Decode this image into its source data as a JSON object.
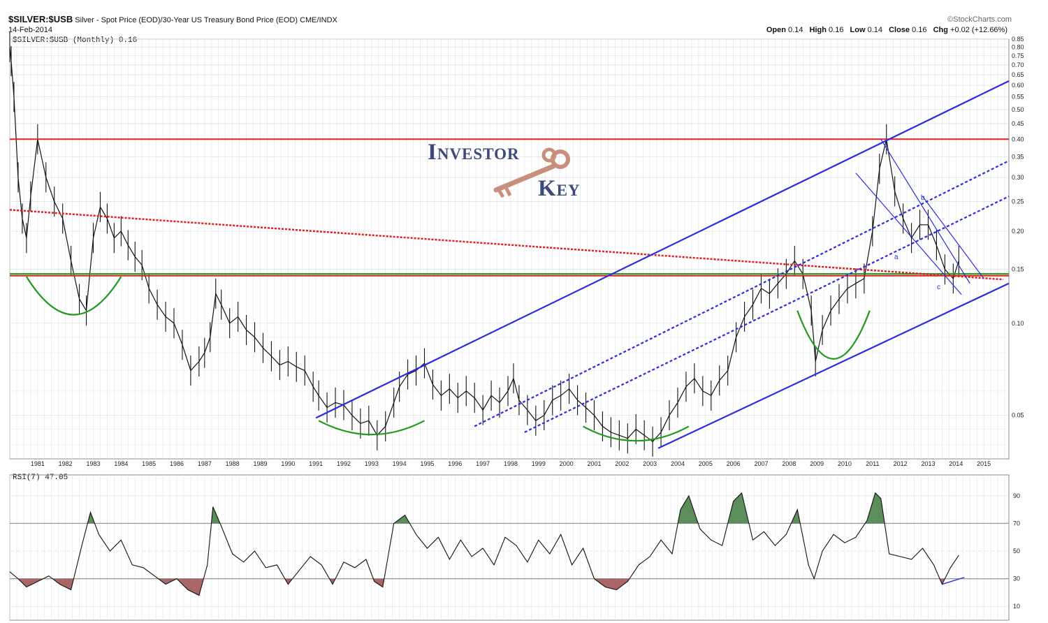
{
  "header": {
    "symbol": "$SILVER:$USB",
    "description": "Silver - Spot Price (EOD)/30-Year US Treasury Bond Price (EOD)",
    "exchange": "CME/INDX",
    "date": "14-Feb-2014",
    "watermark": "©StockCharts.com",
    "legend": "$SILVER:$USB (Monthly) 0.16",
    "ohlc": {
      "open_label": "Open",
      "open": "0.14",
      "high_label": "High",
      "high": "0.16",
      "low_label": "Low",
      "low": "0.14",
      "close_label": "Close",
      "close": "0.16",
      "chg_label": "Chg",
      "chg": "+0.02 (+12.66%)"
    }
  },
  "logo": {
    "line1": "Investor",
    "line2": "Key"
  },
  "wave_labels": [
    "a",
    "b",
    "c"
  ],
  "rsi_legend": "RSI(7) 47.05",
  "colors": {
    "price": "#111111",
    "channel": "#2b2be0",
    "horizontal": "#e02020",
    "support": "#1a9a1a",
    "arc": "#1f9a1f",
    "oversold": "#9b4a4a",
    "overbought": "#3f7a3f"
  },
  "chart_data": [
    {
      "type": "line",
      "title": "$SILVER:$USB (Monthly)",
      "scale": "log",
      "ylim": [
        0.036,
        0.85
      ],
      "xlim": [
        1980.0,
        2015.9
      ],
      "y_ticks": [
        0.85,
        0.8,
        0.75,
        0.7,
        0.65,
        0.6,
        0.55,
        0.5,
        0.45,
        0.4,
        0.35,
        0.3,
        0.25,
        0.2,
        0.15,
        0.1,
        0.05
      ],
      "x_ticks": [
        "1981",
        "1982",
        "1983",
        "1984",
        "1985",
        "1986",
        "1987",
        "1988",
        "1989",
        "1990",
        "1991",
        "1992",
        "1993",
        "1994",
        "1995",
        "1996",
        "1997",
        "1998",
        "1999",
        "2000",
        "2001",
        "2002",
        "2003",
        "2004",
        "2005",
        "2006",
        "2007",
        "2008",
        "2009",
        "2010",
        "2011",
        "2012",
        "2013",
        "2014",
        "2015"
      ],
      "series": [
        {
          "x": [
            1980.0,
            1980.05,
            1980.15,
            1980.3,
            1980.45,
            1980.6,
            1980.75,
            1981.0,
            1981.3,
            1981.6,
            1981.9,
            1982.2,
            1982.5,
            1982.75,
            1983.0,
            1983.25,
            1983.5,
            1983.75,
            1984.0,
            1984.25,
            1984.5,
            1984.75,
            1985.0,
            1985.3,
            1985.6,
            1985.9,
            1986.2,
            1986.5,
            1986.8,
            1987.0,
            1987.2,
            1987.4,
            1987.6,
            1987.9,
            1988.2,
            1988.5,
            1988.8,
            1989.1,
            1989.4,
            1989.7,
            1990.0,
            1990.3,
            1990.6,
            1990.9,
            1991.1,
            1991.4,
            1991.7,
            1992.0,
            1992.3,
            1992.6,
            1992.9,
            1993.2,
            1993.5,
            1993.8,
            1994.0,
            1994.3,
            1994.6,
            1994.9,
            1995.2,
            1995.5,
            1995.8,
            1996.1,
            1996.4,
            1996.7,
            1997.0,
            1997.3,
            1997.6,
            1997.9,
            1998.1,
            1998.3,
            1998.6,
            1998.9,
            1999.2,
            1999.5,
            1999.8,
            2000.1,
            2000.4,
            2000.7,
            2001.0,
            2001.3,
            2001.6,
            2001.9,
            2002.2,
            2002.5,
            2002.8,
            2003.1,
            2003.4,
            2003.7,
            2004.0,
            2004.3,
            2004.6,
            2004.9,
            2005.2,
            2005.5,
            2005.8,
            2006.1,
            2006.4,
            2006.7,
            2007.0,
            2007.3,
            2007.6,
            2007.9,
            2008.2,
            2008.5,
            2008.8,
            2008.95,
            2009.2,
            2009.5,
            2009.8,
            2010.1,
            2010.4,
            2010.7,
            2011.0,
            2011.25,
            2011.5,
            2011.8,
            2012.1,
            2012.4,
            2012.7,
            2013.0,
            2013.3,
            2013.6,
            2013.9,
            2014.1
          ],
          "y": [
            0.8,
            0.72,
            0.55,
            0.3,
            0.22,
            0.19,
            0.26,
            0.4,
            0.3,
            0.25,
            0.22,
            0.16,
            0.12,
            0.11,
            0.19,
            0.24,
            0.22,
            0.19,
            0.2,
            0.18,
            0.165,
            0.155,
            0.13,
            0.115,
            0.105,
            0.1,
            0.085,
            0.07,
            0.075,
            0.08,
            0.09,
            0.125,
            0.115,
            0.1,
            0.105,
            0.095,
            0.09,
            0.083,
            0.078,
            0.073,
            0.075,
            0.072,
            0.07,
            0.062,
            0.058,
            0.053,
            0.055,
            0.054,
            0.05,
            0.047,
            0.048,
            0.043,
            0.046,
            0.055,
            0.062,
            0.068,
            0.07,
            0.074,
            0.063,
            0.058,
            0.061,
            0.057,
            0.06,
            0.057,
            0.052,
            0.058,
            0.055,
            0.06,
            0.066,
            0.056,
            0.052,
            0.048,
            0.05,
            0.056,
            0.058,
            0.061,
            0.056,
            0.053,
            0.05,
            0.046,
            0.044,
            0.043,
            0.042,
            0.045,
            0.043,
            0.041,
            0.044,
            0.05,
            0.055,
            0.062,
            0.066,
            0.06,
            0.058,
            0.065,
            0.07,
            0.09,
            0.105,
            0.115,
            0.13,
            0.125,
            0.135,
            0.145,
            0.16,
            0.145,
            0.11,
            0.075,
            0.095,
            0.11,
            0.12,
            0.13,
            0.135,
            0.14,
            0.2,
            0.32,
            0.4,
            0.27,
            0.22,
            0.19,
            0.21,
            0.21,
            0.18,
            0.15,
            0.14,
            0.16
          ]
        }
      ],
      "horizontal_lines": [
        0.4,
        0.143
      ],
      "support_line": 0.145
    },
    {
      "type": "line",
      "title": "RSI(7)",
      "ylim": [
        0,
        100
      ],
      "y_ticks": [
        90,
        70,
        50,
        30,
        10
      ],
      "x": [
        1980.0,
        1980.3,
        1980.6,
        1981.0,
        1981.4,
        1981.8,
        1982.2,
        1982.6,
        1982.9,
        1983.2,
        1983.6,
        1984.0,
        1984.4,
        1984.8,
        1985.2,
        1985.6,
        1986.0,
        1986.4,
        1986.8,
        1987.1,
        1987.3,
        1987.6,
        1988.0,
        1988.4,
        1988.8,
        1989.2,
        1989.6,
        1990.0,
        1990.4,
        1990.8,
        1991.2,
        1991.6,
        1992.0,
        1992.4,
        1992.8,
        1993.1,
        1993.4,
        1993.8,
        1994.2,
        1994.6,
        1995.0,
        1995.4,
        1995.8,
        1996.2,
        1996.6,
        1997.0,
        1997.4,
        1997.8,
        1998.2,
        1998.6,
        1999.0,
        1999.4,
        1999.8,
        2000.2,
        2000.6,
        2001.0,
        2001.4,
        2001.8,
        2002.2,
        2002.6,
        2003.0,
        2003.4,
        2003.8,
        2004.1,
        2004.4,
        2004.8,
        2005.2,
        2005.6,
        2006.0,
        2006.3,
        2006.7,
        2007.1,
        2007.5,
        2007.9,
        2008.3,
        2008.7,
        2008.9,
        2009.2,
        2009.6,
        2010.0,
        2010.4,
        2010.8,
        2011.1,
        2011.3,
        2011.6,
        2012.0,
        2012.4,
        2012.8,
        2013.2,
        2013.5,
        2013.8,
        2014.1
      ],
      "values": [
        35,
        30,
        24,
        28,
        32,
        26,
        22,
        55,
        78,
        62,
        50,
        58,
        40,
        38,
        32,
        26,
        30,
        22,
        18,
        40,
        82,
        68,
        48,
        42,
        50,
        38,
        40,
        26,
        36,
        46,
        40,
        26,
        42,
        38,
        44,
        28,
        24,
        70,
        76,
        62,
        52,
        60,
        44,
        58,
        46,
        52,
        40,
        60,
        54,
        42,
        58,
        48,
        62,
        40,
        52,
        30,
        24,
        22,
        28,
        40,
        46,
        58,
        48,
        80,
        90,
        66,
        58,
        54,
        86,
        92,
        58,
        64,
        54,
        62,
        80,
        40,
        30,
        50,
        62,
        56,
        60,
        72,
        92,
        88,
        48,
        46,
        44,
        52,
        40,
        26,
        38,
        47
      ]
    }
  ]
}
